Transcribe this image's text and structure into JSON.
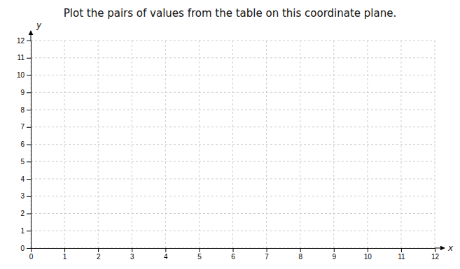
{
  "chart_data": {
    "type": "plane",
    "title": "Plot the pairs of values from the table on this coordinate plane.",
    "xlabel": "x",
    "ylabel": "y",
    "xlim": [
      0,
      12
    ],
    "ylim": [
      0,
      12
    ],
    "xticks": [
      0,
      1,
      2,
      3,
      4,
      5,
      6,
      7,
      8,
      9,
      10,
      11,
      12
    ],
    "yticks": [
      0,
      1,
      2,
      3,
      4,
      5,
      6,
      7,
      8,
      9,
      10,
      11,
      12
    ],
    "grid": true
  }
}
